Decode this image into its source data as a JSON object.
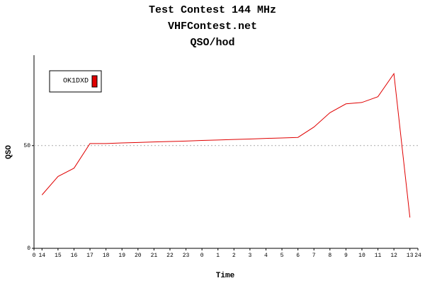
{
  "chart_data": {
    "type": "line",
    "title": "Test Contest 144 MHz",
    "subtitle": "VHFContest.net",
    "subtitle2": "QSO/hod",
    "x_label": "Time",
    "y_label": "QSO",
    "categories": [
      "14",
      "15",
      "16",
      "17",
      "18",
      "19",
      "20",
      "21",
      "22",
      "23",
      "0",
      "1",
      "2",
      "3",
      "4",
      "5",
      "6",
      "7",
      "8",
      "9",
      "10",
      "11",
      "12",
      "13"
    ],
    "series": [
      {
        "name": "OK1DXD",
        "color": "#e00000",
        "values": [
          26,
          35,
          39,
          51,
          51,
          51.3,
          51.5,
          51.8,
          52,
          52.2,
          52.5,
          52.7,
          53,
          53.2,
          53.5,
          53.7,
          54,
          59,
          66,
          70.3,
          71,
          73.8,
          85,
          15
        ]
      }
    ],
    "xlim": [
      0,
      24
    ],
    "xticks": [
      0,
      24
    ],
    "ylim": [
      0,
      94
    ],
    "yticks": [
      0,
      50
    ],
    "grid": true,
    "legend_position": "top-left"
  }
}
